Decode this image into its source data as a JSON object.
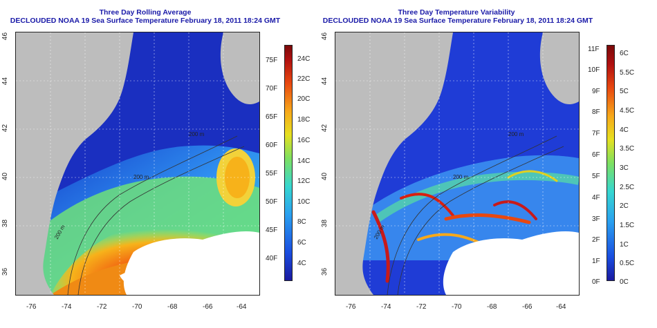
{
  "left_panel": {
    "title_line1": "Three Day Rolling Average",
    "title_line2": "DECLOUDED NOAA 19 Sea Surface Temperature February 18, 2011 18:24 GMT",
    "colorbar_celsius": [
      "24C",
      "22C",
      "20C",
      "18C",
      "16C",
      "14C",
      "12C",
      "10C",
      "8C",
      "6C",
      "4C"
    ],
    "colorbar_fahrenheit": [
      "75F",
      "70F",
      "65F",
      "60F",
      "55F",
      "50F",
      "45F",
      "40F"
    ],
    "contour_labels": [
      "200 m",
      "200 m",
      "200 m"
    ]
  },
  "right_panel": {
    "title_line1": "Three Day Temperature Variability",
    "title_line2": "DECLOUDED NOAA 19 Sea Surface Temperature February 18, 2011 18:24 GMT",
    "colorbar_fahrenheit": [
      "11F",
      "10F",
      "9F",
      "8F",
      "7F",
      "6F",
      "5F",
      "4F",
      "3F",
      "2F",
      "1F",
      "0F"
    ],
    "colorbar_celsius": [
      "6C",
      "5.5C",
      "5C",
      "4.5C",
      "4C",
      "3.5C",
      "3C",
      "2.5C",
      "2C",
      "1.5C",
      "1C",
      "0.5C",
      "0C"
    ],
    "contour_labels": [
      "200 m",
      "200 m",
      "200 m"
    ]
  },
  "axes": {
    "lat_labels": [
      "46",
      "44",
      "42",
      "40",
      "38",
      "36"
    ],
    "lon_labels": [
      "-76",
      "-74",
      "-72",
      "-70",
      "-68",
      "-66",
      "-64"
    ]
  },
  "colors": {
    "title": "#1a1aa8",
    "land": "#bdbdbd",
    "cloud": "#ffffff"
  }
}
